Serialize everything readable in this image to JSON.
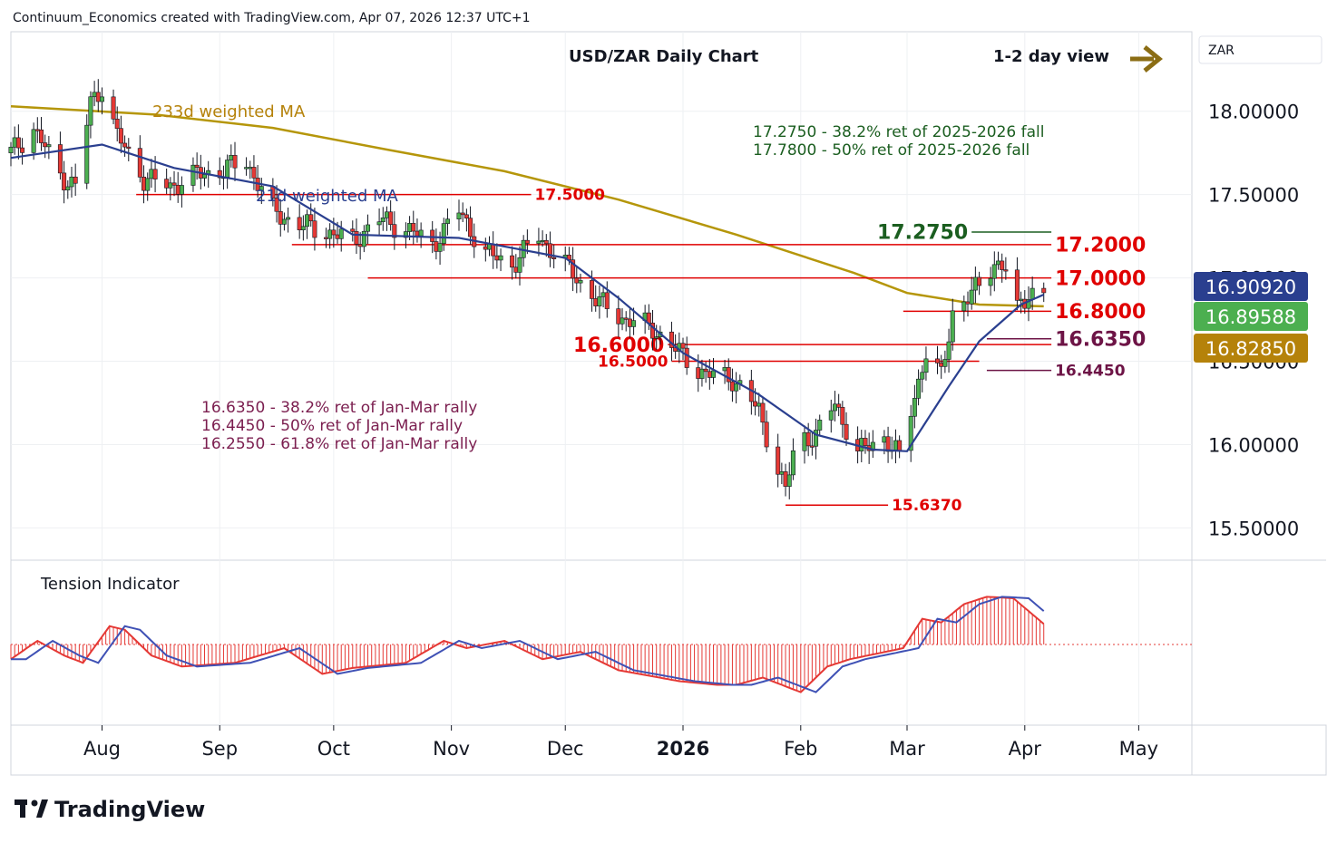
{
  "header": {
    "attribution": "Continuum_Economics created with TradingView.com, Apr 07, 2026 12:37 UTC+1",
    "footer_brand": "TradingView"
  },
  "chart_title": "USD/ZAR Daily Chart",
  "view_label": "1-2 day view",
  "currency_label": "ZAR",
  "ma_labels": {
    "ma233": "233d weighted MA",
    "ma21": "21d weighted MA"
  },
  "retracement_notes_top": [
    "17.2750 - 38.2% ret of 2025-2026 fall",
    "17.7800 - 50% ret of 2025-2026 fall"
  ],
  "retracement_notes_left": [
    "16.6350 - 38.2% ret of Jan-Mar rally",
    "16.4450 - 50% ret of Jan-Mar rally",
    "16.2550 - 61.8% ret of Jan-Mar rally"
  ],
  "indicator_label": "Tension Indicator",
  "price_badges": [
    {
      "value": "16.90920",
      "color": "#2a3f8f"
    },
    {
      "value": "16.89588",
      "color": "#4caf50"
    },
    {
      "value": "16.82850",
      "color": "#b5820a"
    }
  ],
  "colors": {
    "up": "#4caf50",
    "down": "#e53935",
    "ma21": "#2a3f8f",
    "ma233": "#b5960a",
    "level_red": "#e00000",
    "level_purple": "#6d1446",
    "arrow": "#8b6d14"
  },
  "chart_data": {
    "type": "candlestick",
    "title": "USD/ZAR Daily Chart",
    "ylim": [
      15.35,
      18.45
    ],
    "y_ticks": [
      "15.50000",
      "16.00000",
      "16.50000",
      "17.00000",
      "17.50000",
      "18.00000"
    ],
    "x_labels": [
      {
        "label": "Aug",
        "date": "2025-08-01"
      },
      {
        "label": "Sep",
        "date": "2025-09-01"
      },
      {
        "label": "Oct",
        "date": "2025-10-01"
      },
      {
        "label": "Nov",
        "date": "2025-11-01"
      },
      {
        "label": "Dec",
        "date": "2025-12-01"
      },
      {
        "label": "2026",
        "date": "2026-01-01"
      },
      {
        "label": "Feb",
        "date": "2026-02-01"
      },
      {
        "label": "Mar",
        "date": "2026-03-01"
      },
      {
        "label": "Apr",
        "date": "2026-04-01"
      },
      {
        "label": "May",
        "date": "2026-05-01"
      }
    ],
    "x_range": [
      "2025-07-08",
      "2026-05-15"
    ],
    "closes": [
      {
        "date": "2025-07-08",
        "close": 17.75
      },
      {
        "date": "2025-07-14",
        "close": 17.9
      },
      {
        "date": "2025-07-21",
        "close": 17.62
      },
      {
        "date": "2025-07-25",
        "close": 17.55
      },
      {
        "date": "2025-07-29",
        "close": 18.05
      },
      {
        "date": "2025-08-01",
        "close": 18.15
      },
      {
        "date": "2025-08-05",
        "close": 17.85
      },
      {
        "date": "2025-08-12",
        "close": 17.6
      },
      {
        "date": "2025-08-19",
        "close": 17.55
      },
      {
        "date": "2025-08-26",
        "close": 17.62
      },
      {
        "date": "2025-09-02",
        "close": 17.65
      },
      {
        "date": "2025-09-08",
        "close": 17.7
      },
      {
        "date": "2025-09-15",
        "close": 17.4
      },
      {
        "date": "2025-09-22",
        "close": 17.32
      },
      {
        "date": "2025-09-29",
        "close": 17.28
      },
      {
        "date": "2025-10-06",
        "close": 17.22
      },
      {
        "date": "2025-10-13",
        "close": 17.35
      },
      {
        "date": "2025-10-20",
        "close": 17.3
      },
      {
        "date": "2025-10-27",
        "close": 17.2
      },
      {
        "date": "2025-11-03",
        "close": 17.4
      },
      {
        "date": "2025-11-10",
        "close": 17.15
      },
      {
        "date": "2025-11-17",
        "close": 17.08
      },
      {
        "date": "2025-11-24",
        "close": 17.25
      },
      {
        "date": "2025-11-28",
        "close": 17.15
      },
      {
        "date": "2025-12-04",
        "close": 17.0
      },
      {
        "date": "2025-12-10",
        "close": 16.85
      },
      {
        "date": "2025-12-17",
        "close": 16.75
      },
      {
        "date": "2025-12-24",
        "close": 16.7
      },
      {
        "date": "2025-12-31",
        "close": 16.55
      },
      {
        "date": "2026-01-07",
        "close": 16.42
      },
      {
        "date": "2026-01-14",
        "close": 16.4
      },
      {
        "date": "2026-01-21",
        "close": 16.2
      },
      {
        "date": "2026-01-28",
        "close": 15.72
      },
      {
        "date": "2026-01-31",
        "close": 16.05
      },
      {
        "date": "2026-02-05",
        "close": 16.05
      },
      {
        "date": "2026-02-10",
        "close": 16.25
      },
      {
        "date": "2026-02-16",
        "close": 15.95
      },
      {
        "date": "2026-02-23",
        "close": 16.05
      },
      {
        "date": "2026-02-27",
        "close": 15.92
      },
      {
        "date": "2026-03-03",
        "close": 16.3
      },
      {
        "date": "2026-03-06",
        "close": 16.55
      },
      {
        "date": "2026-03-10",
        "close": 16.4
      },
      {
        "date": "2026-03-13",
        "close": 16.8
      },
      {
        "date": "2026-03-17",
        "close": 16.88
      },
      {
        "date": "2026-03-20",
        "close": 16.95
      },
      {
        "date": "2026-03-24",
        "close": 17.1
      },
      {
        "date": "2026-03-27",
        "close": 17.05
      },
      {
        "date": "2026-03-30",
        "close": 16.8
      },
      {
        "date": "2026-04-02",
        "close": 16.92
      },
      {
        "date": "2026-04-06",
        "close": 16.9
      }
    ],
    "ma21": [
      {
        "date": "2025-07-08",
        "value": 17.72
      },
      {
        "date": "2025-08-01",
        "value": 17.8
      },
      {
        "date": "2025-08-20",
        "value": 17.66
      },
      {
        "date": "2025-09-15",
        "value": 17.55
      },
      {
        "date": "2025-10-06",
        "value": 17.26
      },
      {
        "date": "2025-11-03",
        "value": 17.24
      },
      {
        "date": "2025-12-01",
        "value": 17.12
      },
      {
        "date": "2025-12-15",
        "value": 16.88
      },
      {
        "date": "2026-01-01",
        "value": 16.55
      },
      {
        "date": "2026-01-21",
        "value": 16.3
      },
      {
        "date": "2026-02-05",
        "value": 16.06
      },
      {
        "date": "2026-02-20",
        "value": 15.97
      },
      {
        "date": "2026-03-01",
        "value": 15.96
      },
      {
        "date": "2026-03-12",
        "value": 16.35
      },
      {
        "date": "2026-03-20",
        "value": 16.62
      },
      {
        "date": "2026-03-31",
        "value": 16.84
      },
      {
        "date": "2026-04-06",
        "value": 16.9
      }
    ],
    "ma233": [
      {
        "date": "2025-07-08",
        "value": 18.03
      },
      {
        "date": "2025-08-15",
        "value": 17.98
      },
      {
        "date": "2025-09-15",
        "value": 17.9
      },
      {
        "date": "2025-10-15",
        "value": 17.77
      },
      {
        "date": "2025-11-15",
        "value": 17.64
      },
      {
        "date": "2025-12-15",
        "value": 17.47
      },
      {
        "date": "2026-01-15",
        "value": 17.26
      },
      {
        "date": "2026-02-15",
        "value": 17.03
      },
      {
        "date": "2026-03-01",
        "value": 16.91
      },
      {
        "date": "2026-03-20",
        "value": 16.84
      },
      {
        "date": "2026-04-06",
        "value": 16.83
      }
    ],
    "levels": [
      {
        "label": "17.5000",
        "value": 17.5,
        "from": "2025-08-10",
        "to": "2025-11-22",
        "color": "red",
        "label_side": "right",
        "size": 17
      },
      {
        "label": "17.2750",
        "value": 17.275,
        "from": "2026-03-18",
        "to": "2026-04-08",
        "color": "green",
        "label_side": "left",
        "size": 22
      },
      {
        "label": "17.2000",
        "value": 17.2,
        "from": "2025-09-20",
        "to": "2026-04-08",
        "color": "red",
        "label_side": "right",
        "size": 22
      },
      {
        "label": "17.0000",
        "value": 17.0,
        "from": "2025-10-10",
        "to": "2026-04-08",
        "color": "red",
        "label_side": "right",
        "size": 22
      },
      {
        "label": "16.8000",
        "value": 16.8,
        "from": "2026-02-28",
        "to": "2026-04-08",
        "color": "red",
        "label_side": "right",
        "size": 22
      },
      {
        "label": "16.6350",
        "value": 16.635,
        "from": "2026-03-22",
        "to": "2026-04-08",
        "color": "purple",
        "label_side": "right",
        "size": 22
      },
      {
        "label": "16.6000",
        "value": 16.6,
        "from": "2025-12-28",
        "to": "2026-04-08",
        "color": "red",
        "label_side": "left",
        "size": 22
      },
      {
        "label": "16.5000",
        "value": 16.5,
        "from": "2025-12-29",
        "to": "2026-03-20",
        "color": "red",
        "label_side": "left",
        "size": 17
      },
      {
        "label": "16.4450",
        "value": 16.445,
        "from": "2026-03-22",
        "to": "2026-04-08",
        "color": "purple",
        "label_side": "right",
        "size": 17
      },
      {
        "label": "15.6370",
        "value": 15.637,
        "from": "2026-01-28",
        "to": "2026-02-24",
        "color": "red",
        "label_side": "right",
        "size": 17
      }
    ],
    "indicator": {
      "name": "Tension Indicator",
      "ylim": [
        -1.0,
        1.0
      ],
      "values": [
        {
          "date": "2025-07-08",
          "v": -0.2
        },
        {
          "date": "2025-07-15",
          "v": 0.05
        },
        {
          "date": "2025-07-22",
          "v": -0.15
        },
        {
          "date": "2025-07-27",
          "v": -0.25
        },
        {
          "date": "2025-08-03",
          "v": 0.25
        },
        {
          "date": "2025-08-07",
          "v": 0.2
        },
        {
          "date": "2025-08-14",
          "v": -0.15
        },
        {
          "date": "2025-08-22",
          "v": -0.3
        },
        {
          "date": "2025-09-05",
          "v": -0.25
        },
        {
          "date": "2025-09-18",
          "v": -0.05
        },
        {
          "date": "2025-09-28",
          "v": -0.4
        },
        {
          "date": "2025-10-06",
          "v": -0.32
        },
        {
          "date": "2025-10-20",
          "v": -0.25
        },
        {
          "date": "2025-10-30",
          "v": 0.05
        },
        {
          "date": "2025-11-05",
          "v": -0.05
        },
        {
          "date": "2025-11-15",
          "v": 0.05
        },
        {
          "date": "2025-11-25",
          "v": -0.2
        },
        {
          "date": "2025-12-05",
          "v": -0.1
        },
        {
          "date": "2025-12-15",
          "v": -0.35
        },
        {
          "date": "2025-12-31",
          "v": -0.5
        },
        {
          "date": "2026-01-10",
          "v": -0.55
        },
        {
          "date": "2026-01-15",
          "v": -0.55
        },
        {
          "date": "2026-01-22",
          "v": -0.45
        },
        {
          "date": "2026-02-01",
          "v": -0.65
        },
        {
          "date": "2026-02-08",
          "v": -0.3
        },
        {
          "date": "2026-02-14",
          "v": -0.2
        },
        {
          "date": "2026-02-28",
          "v": -0.05
        },
        {
          "date": "2026-03-05",
          "v": 0.35
        },
        {
          "date": "2026-03-10",
          "v": 0.3
        },
        {
          "date": "2026-03-16",
          "v": 0.55
        },
        {
          "date": "2026-03-22",
          "v": 0.65
        },
        {
          "date": "2026-03-29",
          "v": 0.63
        },
        {
          "date": "2026-04-06",
          "v": 0.28
        }
      ]
    }
  }
}
